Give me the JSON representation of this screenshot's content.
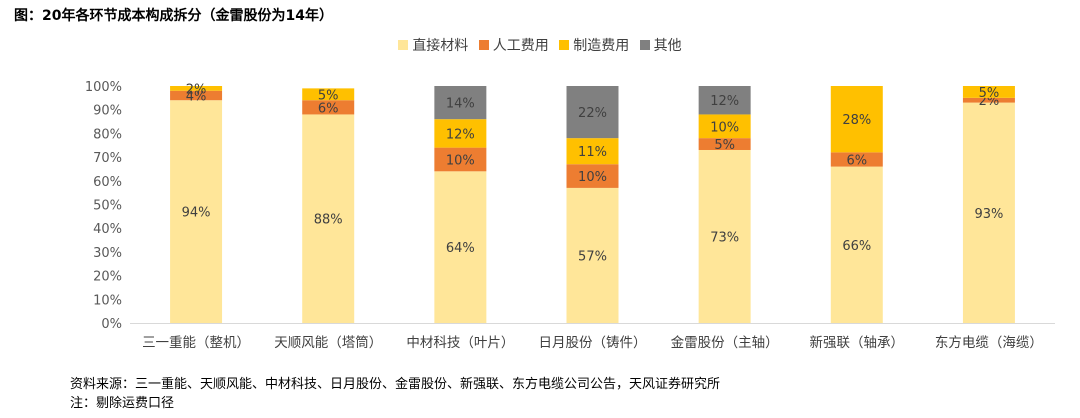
{
  "figure_title": "图：20年各环节成本构成拆分（金雷股份为14年）",
  "source_text": "资料来源：三一重能、天顺风能、中材科技、日月股份、金雷股份、新强联、东方电缆公司公告，天风证券研究所",
  "note_text": "注：剔除运费口径",
  "colors": {
    "直接材料": "#FFE699",
    "人工费用": "#ED7D31",
    "制造费用": "#FFC000",
    "其他": "#808080"
  },
  "chart_data": {
    "type": "bar",
    "stacked": true,
    "categories": [
      "三一重能（整机）",
      "天顺风能（塔筒）",
      "中材科技（叶片）",
      "日月股份（铸件）",
      "金雷股份（主轴）",
      "新强联（轴承）",
      "东方电缆（海缆）"
    ],
    "series": [
      {
        "name": "直接材料",
        "values": [
          94,
          88,
          64,
          57,
          73,
          66,
          93
        ],
        "labels": [
          "94%",
          "88%",
          "64%",
          "57%",
          "73%",
          "66%",
          "93%"
        ]
      },
      {
        "name": "人工费用",
        "values": [
          4,
          6,
          10,
          10,
          5,
          6,
          2
        ],
        "labels": [
          "4%",
          "6%",
          "10%",
          "10%",
          "5%",
          "6%",
          "2%"
        ]
      },
      {
        "name": "制造费用",
        "values": [
          2,
          5,
          12,
          11,
          10,
          28,
          5
        ],
        "labels": [
          "2%",
          "5%",
          "12%",
          "11%",
          "10%",
          "28%",
          "5%"
        ]
      },
      {
        "name": "其他",
        "values": [
          0,
          0,
          14,
          22,
          12,
          0,
          0
        ],
        "labels": [
          "",
          "",
          "14%",
          "22%",
          "12%",
          "",
          ""
        ]
      }
    ],
    "y_ticks": [
      "0%",
      "10%",
      "20%",
      "30%",
      "40%",
      "50%",
      "60%",
      "70%",
      "80%",
      "90%",
      "100%"
    ],
    "ylim": [
      0,
      100
    ],
    "grid": false,
    "legend_position": "top"
  }
}
